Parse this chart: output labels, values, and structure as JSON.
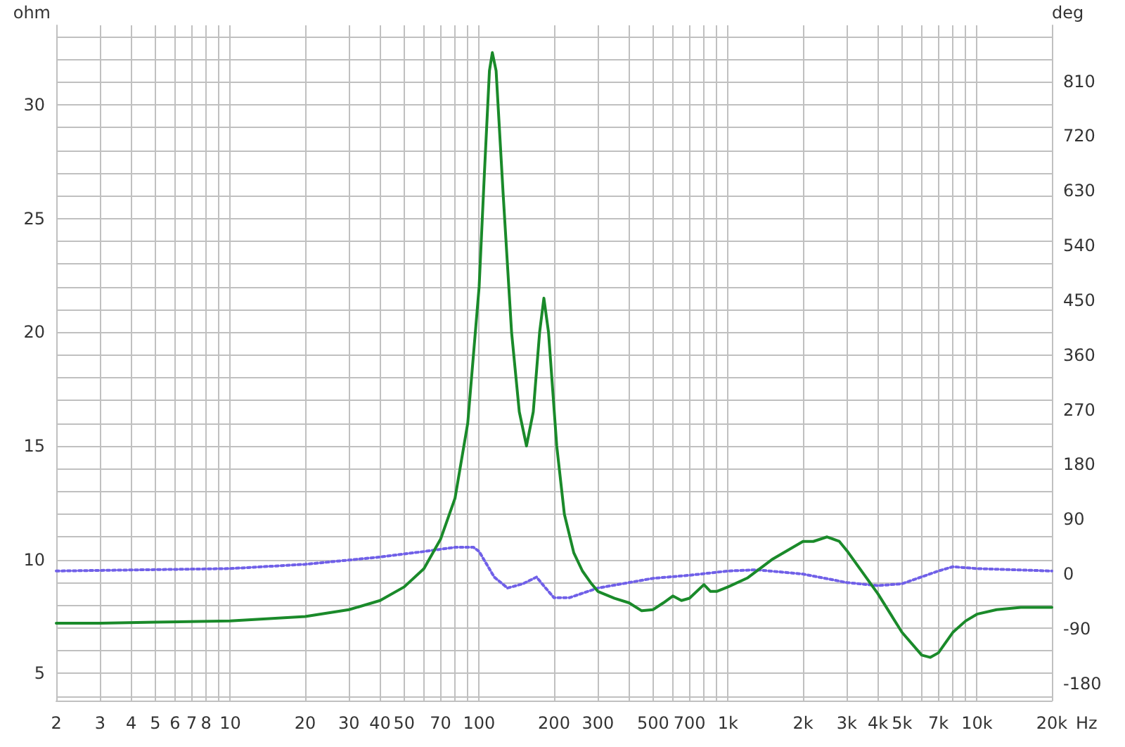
{
  "chart_data": {
    "type": "line",
    "ylabel": "ohm",
    "y2label": "deg",
    "log": "x",
    "grid": true,
    "marker": "none",
    "xlim": [
      2,
      20000
    ],
    "xticks": [
      2,
      3,
      4,
      5,
      6,
      7,
      8,
      {
        "value": 9,
        "label": null
      },
      10,
      20,
      30,
      40,
      50,
      {
        "value": 60,
        "label": null
      },
      70,
      {
        "value": 80,
        "label": null
      },
      {
        "value": 90,
        "label": null
      },
      100,
      200,
      300,
      {
        "value": 400,
        "label": null
      },
      500,
      {
        "value": 600,
        "label": null
      },
      700,
      {
        "value": 800,
        "label": null
      },
      {
        "value": 900,
        "label": null
      },
      {
        "value": 1000,
        "label": "1k"
      },
      {
        "value": 2000,
        "label": "2k"
      },
      {
        "value": 3000,
        "label": "3k"
      },
      {
        "value": 4000,
        "label": "4k"
      },
      {
        "value": 5000,
        "label": "5k"
      },
      {
        "value": 6000,
        "label": null
      },
      {
        "value": 7000,
        "label": "7k"
      },
      {
        "value": 8000,
        "label": null
      },
      {
        "value": 9000,
        "label": null
      },
      {
        "value": 10000,
        "label": "10k"
      },
      {
        "value": 20000,
        "label": "20k"
      }
    ],
    "xlabel": "Hz",
    "ylim": [
      3.8,
      33.5
    ],
    "yticks": [
      {
        "value": 4,
        "label": null
      },
      5,
      {
        "value": 6,
        "label": null
      },
      {
        "value": 7,
        "label": null
      },
      {
        "value": 8,
        "label": null
      },
      {
        "value": 9,
        "label": null
      },
      10,
      {
        "value": 11,
        "label": null
      },
      {
        "value": 12,
        "label": null
      },
      {
        "value": 13,
        "label": null
      },
      {
        "value": 14,
        "label": null
      },
      15,
      {
        "value": 16,
        "label": null
      },
      {
        "value": 17,
        "label": null
      },
      {
        "value": 18,
        "label": null
      },
      {
        "value": 19,
        "label": null
      },
      20,
      {
        "value": 21,
        "label": null
      },
      {
        "value": 22,
        "label": null
      },
      {
        "value": 23,
        "label": null
      },
      {
        "value": 24,
        "label": null
      },
      25,
      {
        "value": 26,
        "label": null
      },
      {
        "value": 27,
        "label": null
      },
      {
        "value": 28,
        "label": null
      },
      {
        "value": 29,
        "label": null
      },
      30,
      {
        "value": 31,
        "label": null
      },
      {
        "value": 32,
        "label": null
      },
      {
        "value": 33,
        "label": null
      }
    ],
    "y2lim": [
      -208,
      902
    ],
    "y2ticks": [
      -180,
      -90,
      0,
      90,
      180,
      270,
      360,
      450,
      540,
      630,
      720,
      810
    ],
    "series": [
      {
        "color": "#1a8a2a",
        "line_style": "solid",
        "x": [
          2,
          3,
          5,
          10,
          20,
          30,
          40,
          50,
          60,
          70,
          80,
          90,
          100,
          105,
          110,
          113,
          117,
          125,
          135,
          145,
          155,
          165,
          175,
          182,
          190,
          205,
          220,
          240,
          260,
          280,
          300,
          350,
          400,
          450,
          500,
          550,
          600,
          650,
          700,
          800,
          850,
          900,
          1000,
          1200,
          1500,
          2000,
          2200,
          2500,
          2800,
          3000,
          4000,
          5000,
          6000,
          6500,
          7000,
          8000,
          9000,
          10000,
          12000,
          15000,
          20000
        ],
        "values": [
          7.2,
          7.2,
          7.25,
          7.3,
          7.5,
          7.8,
          8.2,
          8.8,
          9.6,
          10.9,
          12.7,
          16,
          22,
          27,
          31.5,
          32.3,
          31.5,
          26,
          20,
          16.5,
          15,
          16.5,
          20,
          21.5,
          20,
          15,
          12,
          10.3,
          9.5,
          9,
          8.6,
          8.3,
          8.1,
          7.75,
          7.8,
          8.1,
          8.4,
          8.2,
          8.3,
          8.9,
          8.6,
          8.6,
          8.8,
          9.2,
          10,
          10.8,
          10.8,
          11,
          10.8,
          10.4,
          8.5,
          6.8,
          5.8,
          5.7,
          5.9,
          6.8,
          7.3,
          7.6,
          7.8,
          7.9,
          7.9
        ]
      },
      {
        "color": "#7060e8",
        "line_style": "dotted",
        "axis": "y2",
        "x": [
          2,
          10,
          20,
          40,
          60,
          80,
          95,
          100,
          115,
          130,
          150,
          170,
          185,
          200,
          230,
          300,
          400,
          500,
          700,
          1000,
          1300,
          2000,
          3000,
          4000,
          5000,
          7000,
          8000,
          10000,
          20000
        ],
        "values": [
          5,
          9,
          16,
          28,
          37,
          44,
          44,
          37,
          -5,
          -23,
          -16,
          -5,
          -23,
          -39,
          -39,
          -23,
          -14,
          -7,
          -2,
          5,
          7,
          0,
          -14,
          -19,
          -16,
          5,
          12,
          9,
          5
        ]
      }
    ]
  }
}
